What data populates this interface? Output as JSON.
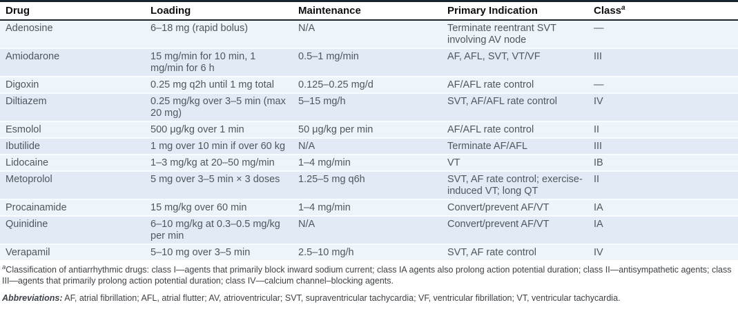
{
  "table": {
    "columns": [
      "Drug",
      "Loading",
      "Maintenance",
      "Primary Indication",
      "Class"
    ],
    "class_superscript": "a",
    "rows": [
      {
        "drug": "Adenosine",
        "loading": "6–18 mg (rapid bolus)",
        "maintenance": "N/A",
        "indication": "Terminate reentrant SVT involving AV node",
        "class": "—"
      },
      {
        "drug": "Amiodarone",
        "loading": "15 mg/min for 10 min, 1 mg/min for 6 h",
        "maintenance": "0.5–1 mg/min",
        "indication": "AF, AFL, SVT, VT/VF",
        "class": "III"
      },
      {
        "drug": "Digoxin",
        "loading": "0.25 mg q2h until 1 mg total",
        "maintenance": "0.125–0.25 mg/d",
        "indication": "AF/AFL rate control",
        "class": "—"
      },
      {
        "drug": "Diltiazem",
        "loading": "0.25 mg/kg over 3–5 min (max 20 mg)",
        "maintenance": "5–15 mg/h",
        "indication": "SVT, AF/AFL rate control",
        "class": "IV"
      },
      {
        "drug": "Esmolol",
        "loading": "500 μg/kg over 1 min",
        "maintenance": "50 μg/kg per min",
        "indication": "AF/AFL rate control",
        "class": "II"
      },
      {
        "drug": "Ibutilide",
        "loading": "1 mg over 10 min if over 60 kg",
        "maintenance": "N/A",
        "indication": "Terminate AF/AFL",
        "class": "III"
      },
      {
        "drug": "Lidocaine",
        "loading": "1–3 mg/kg at 20–50 mg/min",
        "maintenance": "1–4 mg/min",
        "indication": "VT",
        "class": "IB"
      },
      {
        "drug": "Metoprolol",
        "loading": "5 mg over 3–5 min × 3 doses",
        "maintenance": "1.25–5 mg q6h",
        "indication": "SVT, AF rate control; exercise-induced VT; long QT",
        "class": "II"
      },
      {
        "drug": "Procainamide",
        "loading": "15 mg/kg over 60 min",
        "maintenance": "1–4 mg/min",
        "indication": "Convert/prevent AF/VT",
        "class": "IA"
      },
      {
        "drug": "Quinidine",
        "loading": "6–10 mg/kg at 0.3–0.5 mg/kg per min",
        "maintenance": "N/A",
        "indication": "Convert/prevent AF/VT",
        "class": "IA"
      },
      {
        "drug": "Verapamil",
        "loading": "5–10 mg over 3–5 min",
        "maintenance": "2.5–10 mg/h",
        "indication": "SVT, AF rate control",
        "class": "IV"
      }
    ]
  },
  "footnotes": {
    "classification_marker": "a",
    "classification_text": "Classification of antiarrhythmic drugs: class I—agents that primarily block inward sodium current; class IA agents also prolong action potential duration; class II—antisympathetic agents; class III—agents that primarily prolong action potential duration; class IV—calcium channel–blocking agents.",
    "abbreviations_label": "Abbreviations:",
    "abbreviations_text": " AF, atrial fibrillation; AFL, atrial flutter; AV, atrioventricular; SVT, supraventricular tachycardia; VF, ventricular fibrillation; VT, ventricular tachycardia."
  },
  "colors": {
    "row_light": "#edf4fa",
    "row_dark": "#e2eaf5",
    "row_separator": "#fafdff",
    "header_rule": "#16222c",
    "header_text": "#0c0f12",
    "body_text": "#4f575e",
    "footnote_text": "#3c4247"
  }
}
